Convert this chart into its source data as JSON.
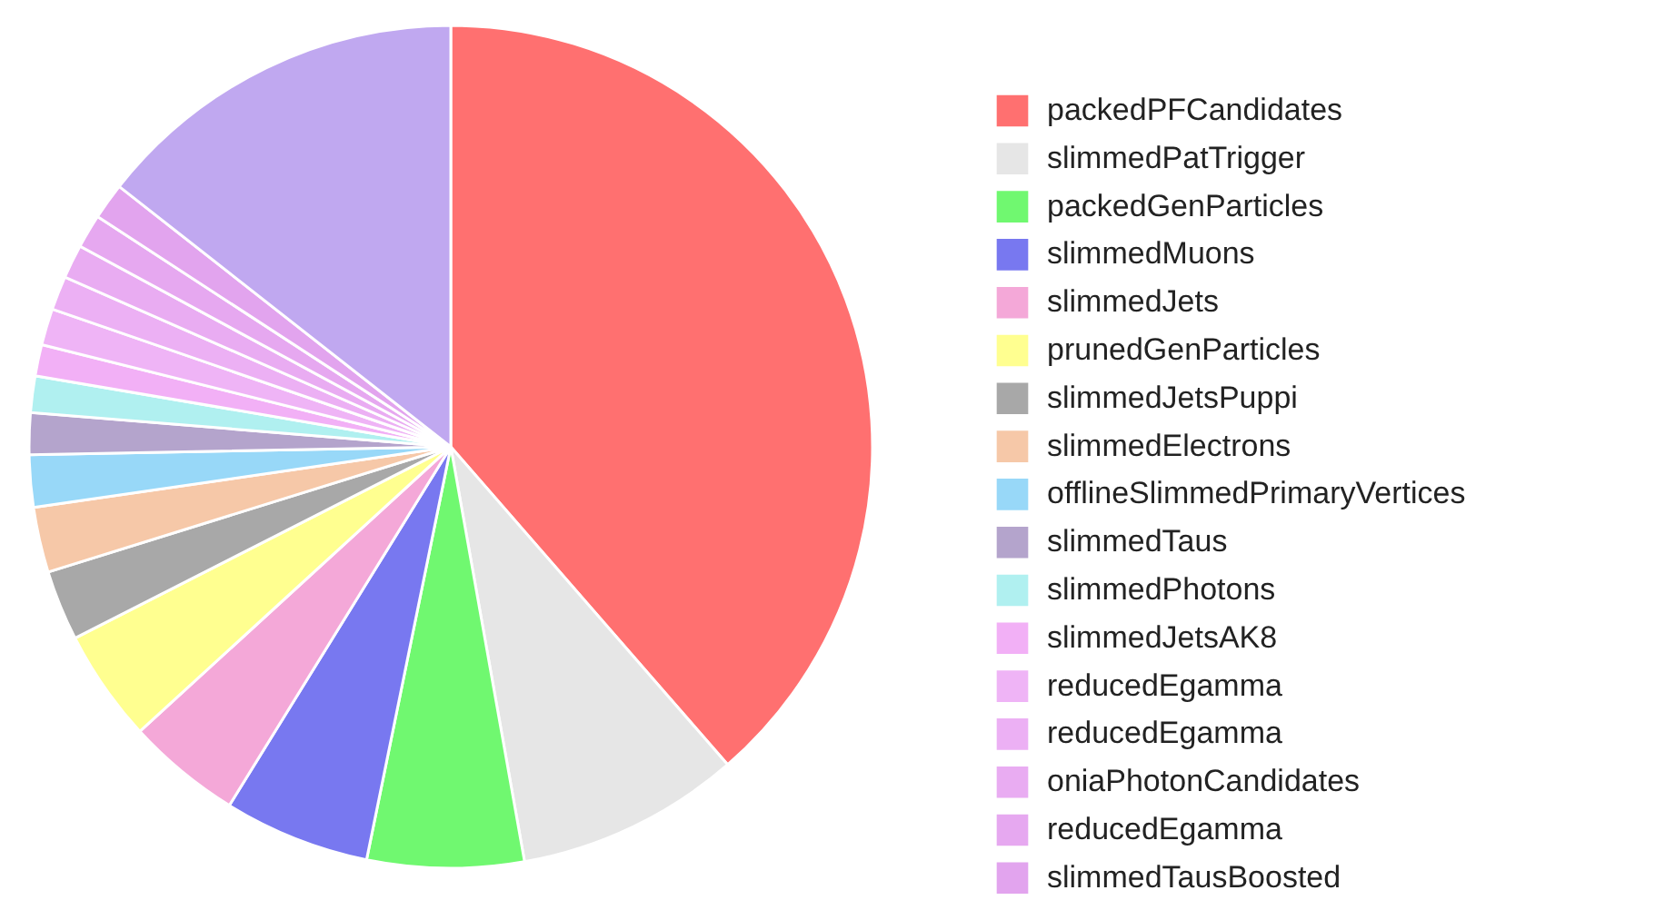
{
  "chart_data": {
    "type": "pie",
    "categories": [
      "packedPFCandidates",
      "slimmedPatTrigger",
      "packedGenParticles",
      "slimmedMuons",
      "slimmedJets",
      "prunedGenParticles",
      "slimmedJetsPuppi",
      "slimmedElectrons",
      "offlineSlimmedPrimaryVertices",
      "slimmedTaus",
      "slimmedPhotons",
      "slimmedJetsAK8",
      "reducedEgamma",
      "reducedEgamma",
      "oniaPhotonCandidates",
      "reducedEgamma",
      "slimmedTausBoosted",
      null
    ],
    "values": [
      38.6,
      8.6,
      6.0,
      5.6,
      4.4,
      4.3,
      2.7,
      2.5,
      2.0,
      1.6,
      1.4,
      1.2,
      1.4,
      1.3,
      1.3,
      1.3,
      1.4,
      14.4
    ],
    "colors": [
      "#ff7070",
      "#e6e6e6",
      "#70f870",
      "#7878f0",
      "#f4a8d8",
      "#ffff90",
      "#a8a8a8",
      "#f6c8a8",
      "#98d8f8",
      "#b4a4cc",
      "#b0f0f0",
      "#f2b0f6",
      "#efb4f6",
      "#ecb0f4",
      "#e9acf2",
      "#e6a8f0",
      "#e2a4ee",
      "#c0a8f0"
    ],
    "legend": "right"
  }
}
